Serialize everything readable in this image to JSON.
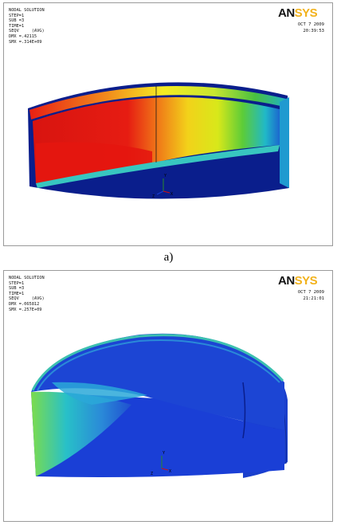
{
  "panels": [
    {
      "title": "NODAL SOLUTION",
      "lines": [
        "STEP=1",
        "SUB =3",
        "TIME=1",
        "SEQV     (AVG)",
        "DMX =.42115",
        "SMX =.314E+09"
      ],
      "logo": {
        "an": "AN",
        "sys": "SYS"
      },
      "date": "OCT  7 2009",
      "time": "20:39:53",
      "axis": {
        "y": "Y",
        "z": "Z",
        "x": "X"
      }
    },
    {
      "title": "NODAL SOLUTION",
      "lines": [
        "STEP=1",
        "SUB =3",
        "TIME=1",
        "SEQV     (AVG)",
        "DMX =.065812",
        "SMX =.257E+09"
      ],
      "logo": {
        "an": "AN",
        "sys": "SYS"
      },
      "date": "OCT  7 2009",
      "time": "21:21:01",
      "axis": {
        "y": "Y",
        "z": "Z",
        "x": "X"
      }
    }
  ],
  "caption_a": "a)",
  "colors": {
    "navy": "#0a1e8c",
    "blue": "#1a3fd6",
    "red": "#e01a12",
    "orange": "#f07818",
    "yellow": "#f0e81a",
    "green": "#3cc840",
    "cyan": "#20c0d8",
    "logo_gold": "#f2b21c"
  }
}
